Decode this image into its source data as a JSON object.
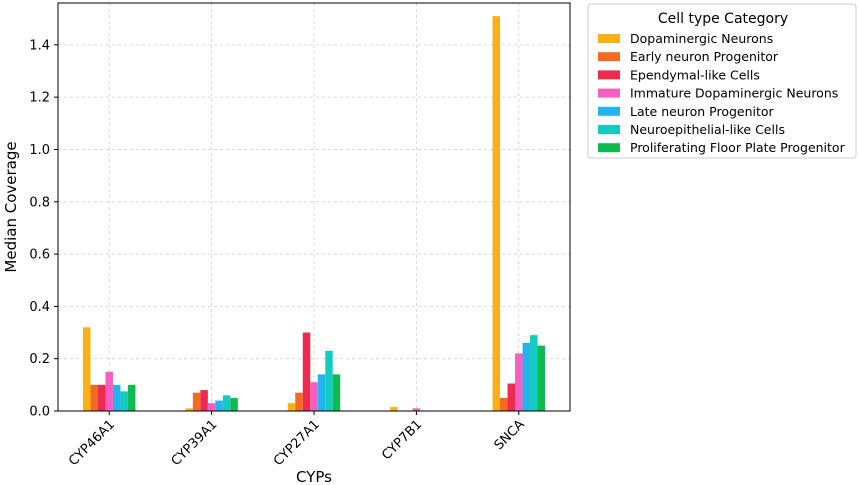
{
  "chart_data": {
    "type": "bar",
    "xlabel": "CYPs",
    "ylabel": "Median Coverage",
    "ylim": [
      0,
      1.56
    ],
    "yticks": [
      0.0,
      0.2,
      0.4,
      0.6,
      0.8,
      1.0,
      1.2,
      1.4
    ],
    "yticks_text": [
      "0.0",
      "0.2",
      "0.4",
      "0.6",
      "0.8",
      "1.0",
      "1.2",
      "1.4"
    ],
    "grid": true,
    "legend": {
      "title": "Cell type Category",
      "placement": "outside-top-right"
    },
    "categories": [
      "CYP46A1",
      "CYP39A1",
      "CYP27A1",
      "CYP7B1",
      "SNCA"
    ],
    "series": [
      {
        "name": "Dopaminergic Neurons",
        "color": "#FBB016",
        "values": [
          0.32,
          0.01,
          0.03,
          0.015,
          1.51
        ]
      },
      {
        "name": "Early neuron Progenitor",
        "color": "#F26B21",
        "values": [
          0.1,
          0.07,
          0.07,
          0.0,
          0.05
        ]
      },
      {
        "name": "Ependymal-like Cells",
        "color": "#EE2B4F",
        "values": [
          0.1,
          0.08,
          0.3,
          0.0,
          0.105
        ]
      },
      {
        "name": "Immature Dopaminergic Neurons",
        "color": "#F65FC2",
        "values": [
          0.15,
          0.03,
          0.11,
          0.01,
          0.22
        ]
      },
      {
        "name": "Late neuron Progenitor",
        "color": "#22B4EC",
        "values": [
          0.1,
          0.04,
          0.14,
          0.0,
          0.26
        ]
      },
      {
        "name": "Neuroepithelial-like Cells",
        "color": "#13CCC0",
        "values": [
          0.075,
          0.06,
          0.23,
          0.0,
          0.29
        ]
      },
      {
        "name": "Proliferating Floor Plate Progenitor",
        "color": "#11B951",
        "values": [
          0.1,
          0.05,
          0.14,
          0.0,
          0.25
        ]
      }
    ]
  }
}
